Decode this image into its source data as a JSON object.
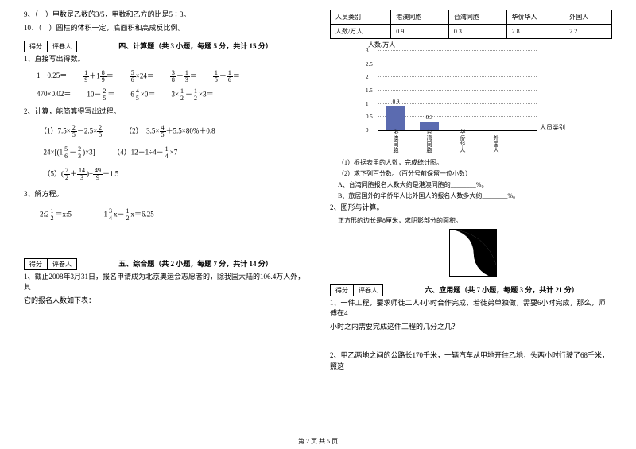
{
  "left": {
    "q9": "9、（　）甲数是乙数的3/5，甲数和乙方的比是5∶3。",
    "q10": "10、（　）圆柱的体积一定，底面积和高成反比例。",
    "score_l": "得分",
    "score_r": "评卷人",
    "section4": "四、计算题（共 3 小题，每题 5 分，共计 15 分）",
    "s4_1": "1、直接写出得数。",
    "m1_1": "1－0.25＝",
    "m1_4": "470×0.02＝",
    "m1_5a": "10－",
    "m2_1": "2、计算，能简算得写出过程。",
    "p1": "（1）7.5×",
    "p1b": "－2.5×",
    "p2": "（2）",
    "p2b": "3.5×",
    "p2c": "＋5.5×80%＋0.8",
    "p3a": "24×",
    "p4": "（4）12－1÷4－",
    "p4b": "×7",
    "p5": "（5）",
    "p5b": "÷",
    "p5c": "－1.5",
    "m3_1": "3、解方程。",
    "eq1a": "2:2",
    "eq1b": "＝x:5",
    "eq2a": "1",
    "eq2b": "x－",
    "eq2c": "x＝6.25",
    "section5": "五、综合题（共 2 小题，每题 7 分，共计 14 分）",
    "s5_1a": "1、截止2008年3月31日，报名申请成为北京奥运会志愿者的，除我国大陆的106.4万人外，其",
    "s5_1b": "它的报名人数如下表："
  },
  "right": {
    "table": {
      "headers": [
        "人员类别",
        "港澳同胞",
        "台湾同胞",
        "华侨华人",
        "外国人"
      ],
      "row_label": "人数/万人",
      "values": [
        "0.9",
        "0.3",
        "2.8",
        "2.2"
      ]
    },
    "chart": {
      "ylabel": "人数/万人",
      "xlabel": "人员类别",
      "yticks": [
        0,
        0.5,
        1,
        1.5,
        2,
        2.5,
        3
      ],
      "ymax": 3,
      "bars": [
        {
          "label": "港澳同胞",
          "value": 0.9,
          "show": "0.9",
          "color": "#5b6bb0"
        },
        {
          "label": "台湾同胞",
          "value": 0.3,
          "show": "0.3",
          "color": "#5b6bb0"
        },
        {
          "label": "华侨华人",
          "value": null,
          "show": "",
          "color": "#5b6bb0"
        },
        {
          "label": "外国人",
          "value": null,
          "show": "",
          "color": "#5b6bb0"
        }
      ]
    },
    "q1": "（1）根据表里的人数，完成统计图。",
    "q2": "（2）求下列百分数。（百分号前保留一位小数）",
    "qA": "A、台湾同胞报名人数大约是港澳同胞的________%。",
    "qB": "B、旅居国外的华侨华人比外国人的报名人数多大约________%。",
    "shape_title": "2、图形与计算。",
    "shape_sub": "正方形的边长是8厘米，求阴影部分的面积。",
    "section6": "六、应用题（共 7 小题，每题 3 分，共计 21 分）",
    "s6_1a": "1、一件工程，要求师徒二人4小时合作完成，若徒弟单独做，需要6小时完成，那么，师傅在4",
    "s6_1b": "小时之内需要完成这件工程的几分之几？",
    "s6_2": "2、甲乙两地之间的公路长170千米，一辆汽车从甲地开往乙地，头两小时行驶了68千米，照这"
  },
  "footer": "第 2 页 共 5 页"
}
